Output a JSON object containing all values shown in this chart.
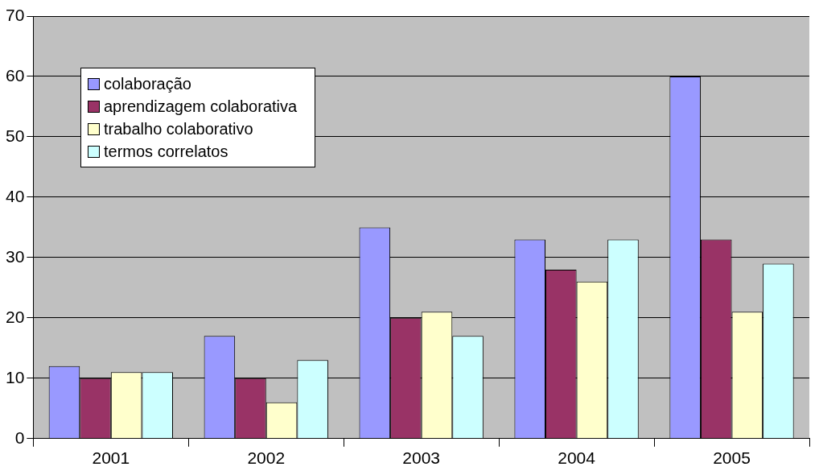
{
  "chart_data": {
    "type": "bar",
    "categories": [
      "2001",
      "2002",
      "2003",
      "2004",
      "2005"
    ],
    "series": [
      {
        "name": "colaboração",
        "color": "#9999ff",
        "values": [
          12,
          17,
          35,
          33,
          60
        ]
      },
      {
        "name": "aprendizagem colaborativa",
        "color": "#993366",
        "values": [
          10,
          10,
          20,
          28,
          33
        ]
      },
      {
        "name": "trabalho colaborativo",
        "color": "#ffffcc",
        "values": [
          11,
          6,
          21,
          26,
          21
        ]
      },
      {
        "name": "termos correlatos",
        "color": "#ccffff",
        "values": [
          11,
          13,
          17,
          33,
          29
        ]
      }
    ],
    "ylim": [
      0,
      70
    ],
    "yticks": [
      0,
      10,
      20,
      30,
      40,
      50,
      60,
      70
    ],
    "grid": "y",
    "legend": "top left"
  }
}
